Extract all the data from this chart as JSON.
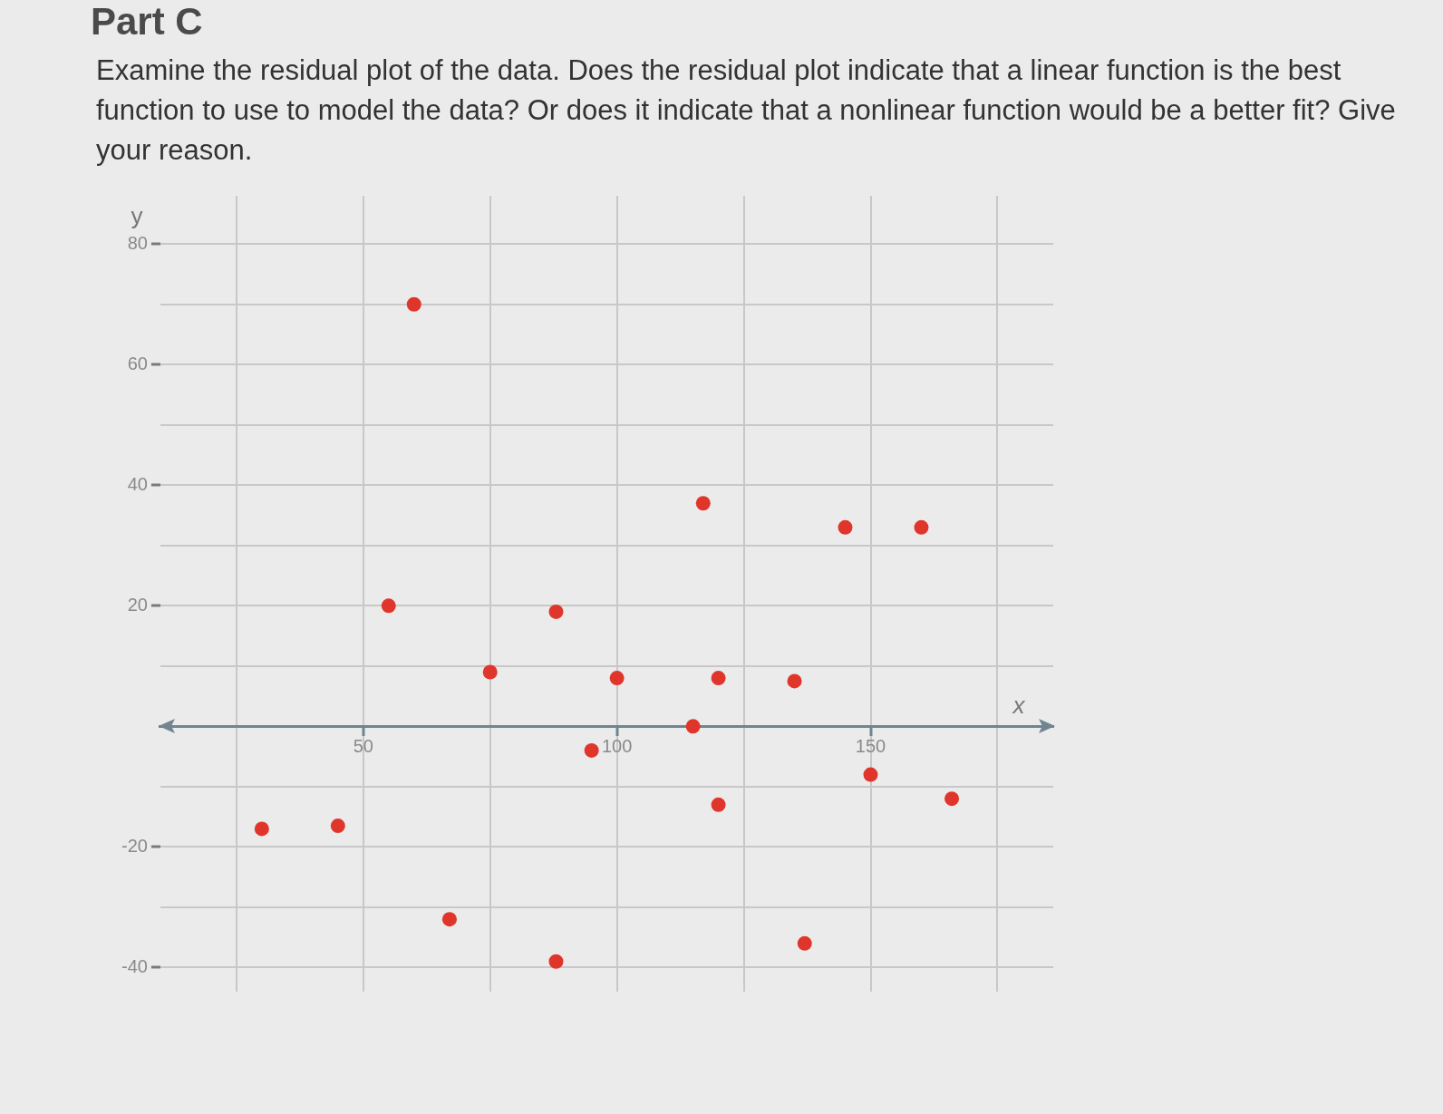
{
  "chart_data": {
    "type": "scatter",
    "title": "Part C",
    "subtitle": "Examine the residual plot of the data. Does the residual plot indicate that a linear function is the best function to use to model the data? Or does it indicate that a nonlinear function would be a better fit? Give your reason.",
    "xlabel": "x",
    "ylabel": "y",
    "x": [
      30,
      45,
      55,
      60,
      67,
      75,
      88,
      88,
      95,
      100,
      115,
      117,
      120,
      120,
      135,
      137,
      145,
      150,
      160,
      166
    ],
    "values": [
      -17,
      -16.5,
      20,
      70,
      -32,
      9,
      19,
      -39,
      -4,
      8,
      0,
      37,
      8,
      -13,
      7.5,
      -36,
      33,
      -8,
      33,
      -12
    ],
    "color": "#e0352b",
    "marker": "circle",
    "grid": true,
    "xlim": [
      10,
      186
    ],
    "ylim": [
      -44,
      88
    ],
    "xticks": [
      {
        "value": 25,
        "label": null
      },
      50,
      {
        "value": 75,
        "label": null
      },
      100,
      {
        "value": 125,
        "label": null
      },
      150,
      {
        "value": 175,
        "label": null
      }
    ],
    "yticks": [
      -40,
      {
        "value": -30,
        "label": null
      },
      -20,
      {
        "value": -10,
        "label": null
      },
      {
        "value": 0,
        "label": null
      },
      {
        "value": 10,
        "label": null
      },
      20,
      {
        "value": 30,
        "label": null
      },
      40,
      {
        "value": 50,
        "label": null
      },
      60,
      {
        "value": 70,
        "label": null
      },
      80
    ]
  }
}
